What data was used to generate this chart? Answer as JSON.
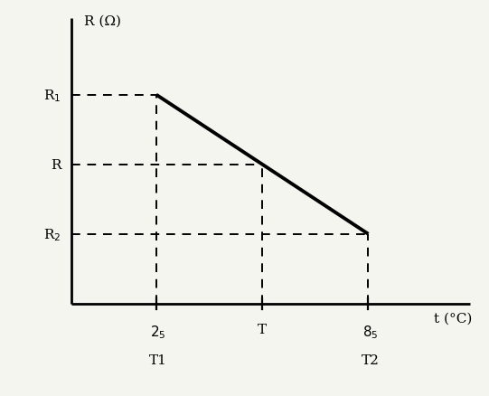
{
  "ylabel": "R (Ω)",
  "xlabel": "t (°C)",
  "y_r1": 3.0,
  "y_r": 2.0,
  "y_r2": 1.0,
  "x_t1": 2.0,
  "x_t": 4.5,
  "x_t2": 7.0,
  "xlim": [
    -0.3,
    9.5
  ],
  "ylim": [
    -0.3,
    4.2
  ],
  "ytick_labels_text": [
    "R$_2$",
    "R",
    "R$_1$"
  ],
  "line_color": "#000000",
  "dashed_color": "#000000",
  "background_color": "#f5f5f0",
  "axis_label_fontsize": 11,
  "tick_label_fontsize": 11,
  "sub_label_fontsize": 10,
  "line_width": 2.8,
  "dashed_linewidth": 1.4,
  "axis_linewidth": 2.0
}
